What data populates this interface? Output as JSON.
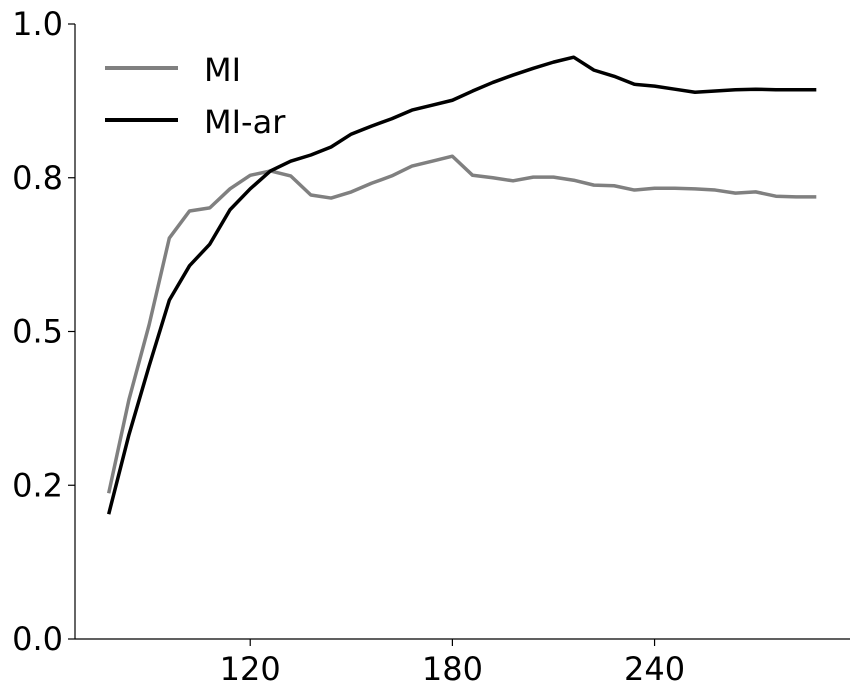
{
  "chart_data": {
    "type": "line",
    "x": [
      78,
      84,
      90,
      96,
      102,
      108,
      114,
      120,
      126,
      132,
      138,
      144,
      150,
      156,
      162,
      168,
      174,
      180,
      186,
      192,
      198,
      204,
      210,
      216,
      222,
      228,
      234,
      240,
      246,
      252,
      258,
      264,
      270,
      276,
      282,
      288
    ],
    "series": [
      {
        "name": "MI",
        "color": "#808080",
        "values": [
          0.237,
          0.389,
          0.511,
          0.652,
          0.696,
          0.701,
          0.732,
          0.754,
          0.761,
          0.753,
          0.722,
          0.717,
          0.727,
          0.741,
          0.753,
          0.769,
          0.777,
          0.785,
          0.754,
          0.75,
          0.745,
          0.751,
          0.751,
          0.746,
          0.738,
          0.737,
          0.73,
          0.733,
          0.733,
          0.732,
          0.73,
          0.725,
          0.727,
          0.72,
          0.719,
          0.719
        ]
      },
      {
        "name": "MI-ar",
        "color": "#000000",
        "values": [
          0.203,
          0.332,
          0.444,
          0.551,
          0.607,
          0.642,
          0.698,
          0.732,
          0.761,
          0.777,
          0.787,
          0.8,
          0.821,
          0.834,
          0.846,
          0.86,
          0.868,
          0.876,
          0.891,
          0.905,
          0.917,
          0.928,
          0.938,
          0.946,
          0.925,
          0.915,
          0.902,
          0.899,
          0.894,
          0.889,
          0.891,
          0.893,
          0.894,
          0.893,
          0.893,
          0.893
        ]
      }
    ],
    "xlim": [
      68,
      298
    ],
    "xticks": [
      120,
      180,
      240
    ],
    "ylim": [
      0,
      1
    ],
    "yticks": [
      {
        "value": 0,
        "label": "0.0"
      },
      {
        "value": 0.25,
        "label": "0.2"
      },
      {
        "value": 0.5,
        "label": "0.5"
      },
      {
        "value": 0.75,
        "label": "0.8"
      },
      {
        "value": 1,
        "label": "1.0"
      }
    ],
    "legend": "upper left",
    "grid": false
  }
}
